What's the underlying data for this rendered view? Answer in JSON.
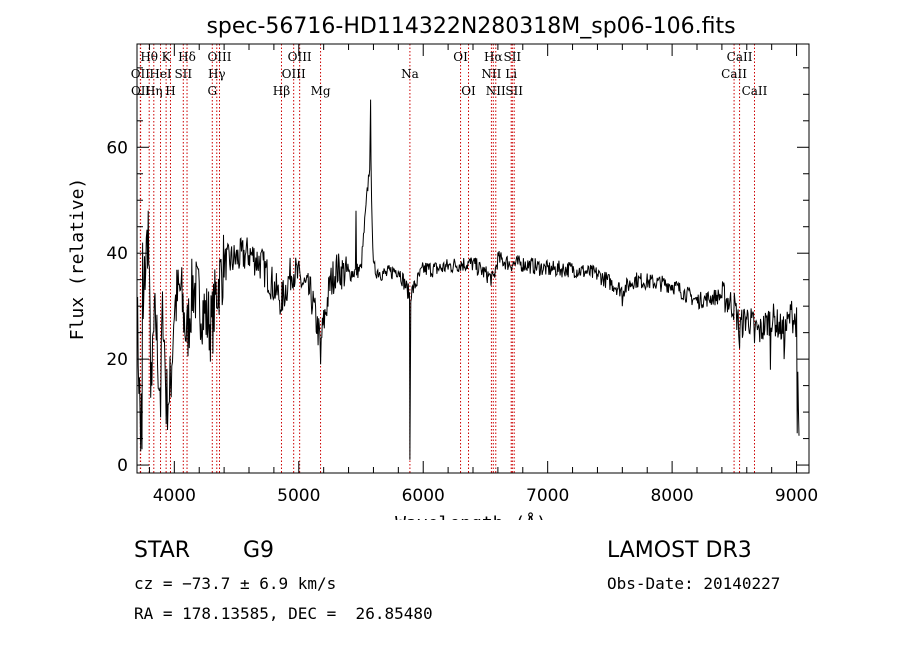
{
  "chart_data": {
    "type": "line",
    "title": "spec-56716-HD114322N280318M_sp06-106.fits",
    "xlabel": "Wavelength (Å)",
    "ylabel": "Flux (relative)",
    "xlim": [
      3700,
      9100
    ],
    "ylim": [
      -1.5,
      79.5
    ],
    "x_ticks": [
      4000,
      5000,
      6000,
      7000,
      8000,
      9000
    ],
    "y_ticks": [
      0,
      20,
      40,
      60
    ],
    "colors": {
      "spectrum": "#000000",
      "line_markers": "#cc0000"
    },
    "spectrum_anchors": [
      {
        "x": 3700,
        "y": 30
      },
      {
        "x": 3730,
        "y": 5
      },
      {
        "x": 3760,
        "y": 35
      },
      {
        "x": 3790,
        "y": 45
      },
      {
        "x": 3810,
        "y": 18
      },
      {
        "x": 3850,
        "y": 28
      },
      {
        "x": 3880,
        "y": 15
      },
      {
        "x": 3910,
        "y": 30
      },
      {
        "x": 3935,
        "y": 12
      },
      {
        "x": 3970,
        "y": 15
      },
      {
        "x": 4000,
        "y": 30
      },
      {
        "x": 4050,
        "y": 33
      },
      {
        "x": 4100,
        "y": 24
      },
      {
        "x": 4150,
        "y": 34
      },
      {
        "x": 4200,
        "y": 31
      },
      {
        "x": 4300,
        "y": 26
      },
      {
        "x": 4340,
        "y": 33
      },
      {
        "x": 4400,
        "y": 38
      },
      {
        "x": 4500,
        "y": 39
      },
      {
        "x": 4600,
        "y": 40
      },
      {
        "x": 4700,
        "y": 38
      },
      {
        "x": 4861,
        "y": 31
      },
      {
        "x": 4950,
        "y": 37
      },
      {
        "x": 5100,
        "y": 32
      },
      {
        "x": 5175,
        "y": 23
      },
      {
        "x": 5250,
        "y": 34
      },
      {
        "x": 5300,
        "y": 37
      },
      {
        "x": 5400,
        "y": 36
      },
      {
        "x": 5500,
        "y": 37
      },
      {
        "x": 5577,
        "y": 59
      },
      {
        "x": 5600,
        "y": 37
      },
      {
        "x": 5700,
        "y": 36
      },
      {
        "x": 5800,
        "y": 37
      },
      {
        "x": 5893,
        "y": 32
      },
      {
        "x": 6000,
        "y": 37
      },
      {
        "x": 6100,
        "y": 37
      },
      {
        "x": 6300,
        "y": 38
      },
      {
        "x": 6400,
        "y": 38
      },
      {
        "x": 6563,
        "y": 35
      },
      {
        "x": 6600,
        "y": 39
      },
      {
        "x": 6700,
        "y": 38
      },
      {
        "x": 6800,
        "y": 38
      },
      {
        "x": 7000,
        "y": 37
      },
      {
        "x": 7200,
        "y": 37
      },
      {
        "x": 7400,
        "y": 36
      },
      {
        "x": 7600,
        "y": 33
      },
      {
        "x": 7700,
        "y": 35
      },
      {
        "x": 8000,
        "y": 34
      },
      {
        "x": 8200,
        "y": 31
      },
      {
        "x": 8400,
        "y": 32
      },
      {
        "x": 8500,
        "y": 30
      },
      {
        "x": 8542,
        "y": 26
      },
      {
        "x": 8600,
        "y": 28
      },
      {
        "x": 8700,
        "y": 25
      },
      {
        "x": 8800,
        "y": 28
      },
      {
        "x": 8900,
        "y": 25
      },
      {
        "x": 8950,
        "y": 28
      },
      {
        "x": 9000,
        "y": 27
      },
      {
        "x": 9020,
        "y": 5
      }
    ],
    "spikes": [
      {
        "x": 3740,
        "y": 3
      },
      {
        "x": 3745,
        "y": 42
      },
      {
        "x": 3790,
        "y": 48
      },
      {
        "x": 3820,
        "y": 15
      },
      {
        "x": 3890,
        "y": 9
      },
      {
        "x": 3960,
        "y": 12
      },
      {
        "x": 5577,
        "y": 69
      },
      {
        "x": 5893,
        "y": 1
      },
      {
        "x": 5460,
        "y": 48
      },
      {
        "x": 4861,
        "y": 29
      },
      {
        "x": 5175,
        "y": 19
      },
      {
        "x": 7600,
        "y": 30
      },
      {
        "x": 8542,
        "y": 22
      },
      {
        "x": 8662,
        "y": 23
      },
      {
        "x": 8790,
        "y": 18
      },
      {
        "x": 8900,
        "y": 20
      },
      {
        "x": 8960,
        "y": 31
      },
      {
        "x": 9005,
        "y": 6
      }
    ],
    "spectral_lines": [
      {
        "label": "OII",
        "x": 3727,
        "row": 2
      },
      {
        "label": "OII",
        "x": 3729,
        "row": 3
      },
      {
        "label": "Hθ",
        "x": 3798,
        "row": 1
      },
      {
        "label": "Hη",
        "x": 3835,
        "row": 3
      },
      {
        "label": "HeI",
        "x": 3889,
        "row": 2
      },
      {
        "label": "K",
        "x": 3934,
        "row": 1
      },
      {
        "label": "H",
        "x": 3969,
        "row": 3
      },
      {
        "label": "SII",
        "x": 4072,
        "row": 2
      },
      {
        "label": "Hδ",
        "x": 4102,
        "row": 1
      },
      {
        "label": "G",
        "x": 4305,
        "row": 3
      },
      {
        "label": "Hγ",
        "x": 4341,
        "row": 2
      },
      {
        "label": "OIII",
        "x": 4363,
        "row": 1
      },
      {
        "label": "Hβ",
        "x": 4861,
        "row": 3
      },
      {
        "label": "OIII",
        "x": 4959,
        "row": 2
      },
      {
        "label": "OIII",
        "x": 5007,
        "row": 1
      },
      {
        "label": "Mg",
        "x": 5175,
        "row": 3
      },
      {
        "label": "Na",
        "x": 5893,
        "row": 2
      },
      {
        "label": "OI",
        "x": 6300,
        "row": 1
      },
      {
        "label": "OI",
        "x": 6364,
        "row": 3
      },
      {
        "label": "NII",
        "x": 6548,
        "row": 2
      },
      {
        "label": "Hα",
        "x": 6563,
        "row": 1
      },
      {
        "label": "NII",
        "x": 6583,
        "row": 3
      },
      {
        "label": "Li",
        "x": 6707,
        "row": 2
      },
      {
        "label": "SII",
        "x": 6716,
        "row": 1
      },
      {
        "label": "SII",
        "x": 6731,
        "row": 3
      },
      {
        "label": "CaII",
        "x": 8498,
        "row": 2
      },
      {
        "label": "CaII",
        "x": 8542,
        "row": 1
      },
      {
        "label": "CaII",
        "x": 8662,
        "row": 3
      }
    ]
  },
  "info": {
    "object_class": "STAR",
    "subclass": "G9",
    "survey": "LAMOST DR3",
    "redshift": "cz = −73.7 ± 6.9 km/s",
    "obs_date": "Obs-Date: 20140227",
    "coords": "RA = 178.13585, DEC =  26.85480"
  }
}
